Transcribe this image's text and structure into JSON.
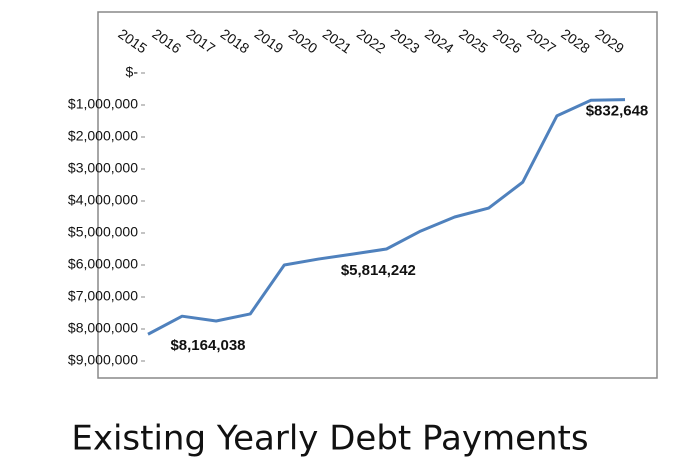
{
  "chart_data": {
    "type": "line",
    "title": "Existing Yearly Debt Payments",
    "categories": [
      "2015",
      "2016",
      "2017",
      "2018",
      "2019",
      "2020",
      "2021",
      "2022",
      "2023",
      "2024",
      "2025",
      "2026",
      "2027",
      "2028",
      "2029"
    ],
    "series": [
      {
        "name": "Existing Yearly Debt Payments",
        "color": "#4f81bd",
        "values": [
          8164038,
          7600000,
          7750000,
          7530000,
          6000000,
          5814242,
          5660000,
          5500000,
          4940000,
          4500000,
          4220000,
          3410000,
          1340000,
          850000,
          832648
        ],
        "value_labels": [
          "$8,164,038",
          null,
          null,
          null,
          null,
          "$5,814,242",
          null,
          null,
          null,
          null,
          null,
          null,
          null,
          null,
          "$832,648"
        ]
      }
    ],
    "ylim": [
      0,
      9000000
    ],
    "yticks": [
      {
        "value": 0,
        "label": "$-"
      },
      {
        "value": 1000000,
        "label": "$1,000,000"
      },
      {
        "value": 2000000,
        "label": "$2,000,000"
      },
      {
        "value": 3000000,
        "label": "$3,000,000"
      },
      {
        "value": 4000000,
        "label": "$4,000,000"
      },
      {
        "value": 5000000,
        "label": "$5,000,000"
      },
      {
        "value": 6000000,
        "label": "$6,000,000"
      },
      {
        "value": 7000000,
        "label": "$7,000,000"
      },
      {
        "value": 8000000,
        "label": "$8,000,000"
      },
      {
        "value": 9000000,
        "label": "$9,000,000"
      }
    ],
    "grid": false,
    "flipped_vertically": true
  }
}
